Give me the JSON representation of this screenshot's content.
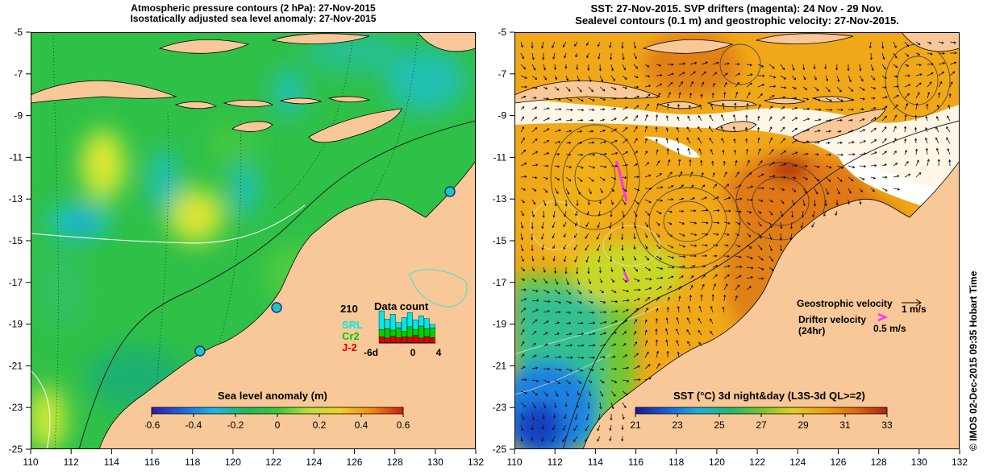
{
  "left_panel": {
    "title_line1": "Atmospheric pressure contours (2 hPa): 27-Nov-2015",
    "title_line2": "Isostatically adjusted sea level anomaly: 27-Nov-2015",
    "colorbar_label": "Sea level anomaly (m)",
    "colorbar_ticks": [
      "-0.6",
      "-0.4",
      "-0.2",
      "0",
      "0.2",
      "0.4",
      "0.6"
    ],
    "colorbar_colors": [
      "#2a1ba8",
      "#1f66e6",
      "#19b8e8",
      "#1fb85a",
      "#39c83a",
      "#b6e23a",
      "#f0d020",
      "#f28a10",
      "#d21a10"
    ],
    "inset": {
      "max": "210",
      "title": "Data count",
      "legend": [
        {
          "name": "SRL",
          "color": "#00e8e8"
        },
        {
          "name": "Cr2",
          "color": "#00d000"
        },
        {
          "name": "J-2",
          "color": "#e00000"
        }
      ],
      "x_ticks": [
        "-6d",
        "0",
        "4"
      ],
      "bars": [
        {
          "j2": 0.18,
          "cr2": 0.4,
          "srl": 0.95
        },
        {
          "j2": 0.15,
          "cr2": 0.42,
          "srl": 0.7
        },
        {
          "j2": 0.2,
          "cr2": 0.38,
          "srl": 0.85
        },
        {
          "j2": 0.16,
          "cr2": 0.45,
          "srl": 0.6
        },
        {
          "j2": 0.18,
          "cr2": 0.35,
          "srl": 0.75
        },
        {
          "j2": 0.17,
          "cr2": 0.48,
          "srl": 0.9
        },
        {
          "j2": 0.22,
          "cr2": 0.4,
          "srl": 0.68
        },
        {
          "j2": 0.15,
          "cr2": 0.5,
          "srl": 0.8
        },
        {
          "j2": 0.19,
          "cr2": 0.42,
          "srl": 0.72
        },
        {
          "j2": 0.16,
          "cr2": 0.44,
          "srl": 0.55
        }
      ]
    }
  },
  "right_panel": {
    "title_line1": "SST: 27-Nov-2015. SVP drifters (magenta): 24 Nov - 29 Nov.",
    "title_line2": "Sealevel contours (0.1 m) and geostrophic velocity: 27-Nov-2015.",
    "colorbar_label": "SST (°C) 3d night&day (L3S-3d QL>=2)",
    "colorbar_ticks": [
      "21",
      "23",
      "25",
      "27",
      "29",
      "31",
      "33"
    ],
    "colorbar_colors": [
      "#1a1a9a",
      "#1560d8",
      "#18b0e0",
      "#20b870",
      "#70c830",
      "#e0d020",
      "#f0a010",
      "#e06a10",
      "#b02010"
    ],
    "geostrophic_label": "Geostrophic velocity",
    "geostrophic_value": "1 m/s",
    "drifter_label_line1": "Drifter velocity",
    "drifter_label_line2": "(24hr)",
    "drifter_value": "0.5 m/s"
  },
  "axes": {
    "y_ticks": [
      "-5",
      "-7",
      "-9",
      "-11",
      "-13",
      "-15",
      "-17",
      "-19",
      "-21",
      "-23",
      "-25"
    ],
    "x_ticks": [
      "110",
      "112",
      "114",
      "116",
      "118",
      "120",
      "122",
      "124",
      "126",
      "128",
      "130",
      "132"
    ]
  },
  "credit": "© IMOS 02-Dec-2015 09:35 Hobart Time"
}
